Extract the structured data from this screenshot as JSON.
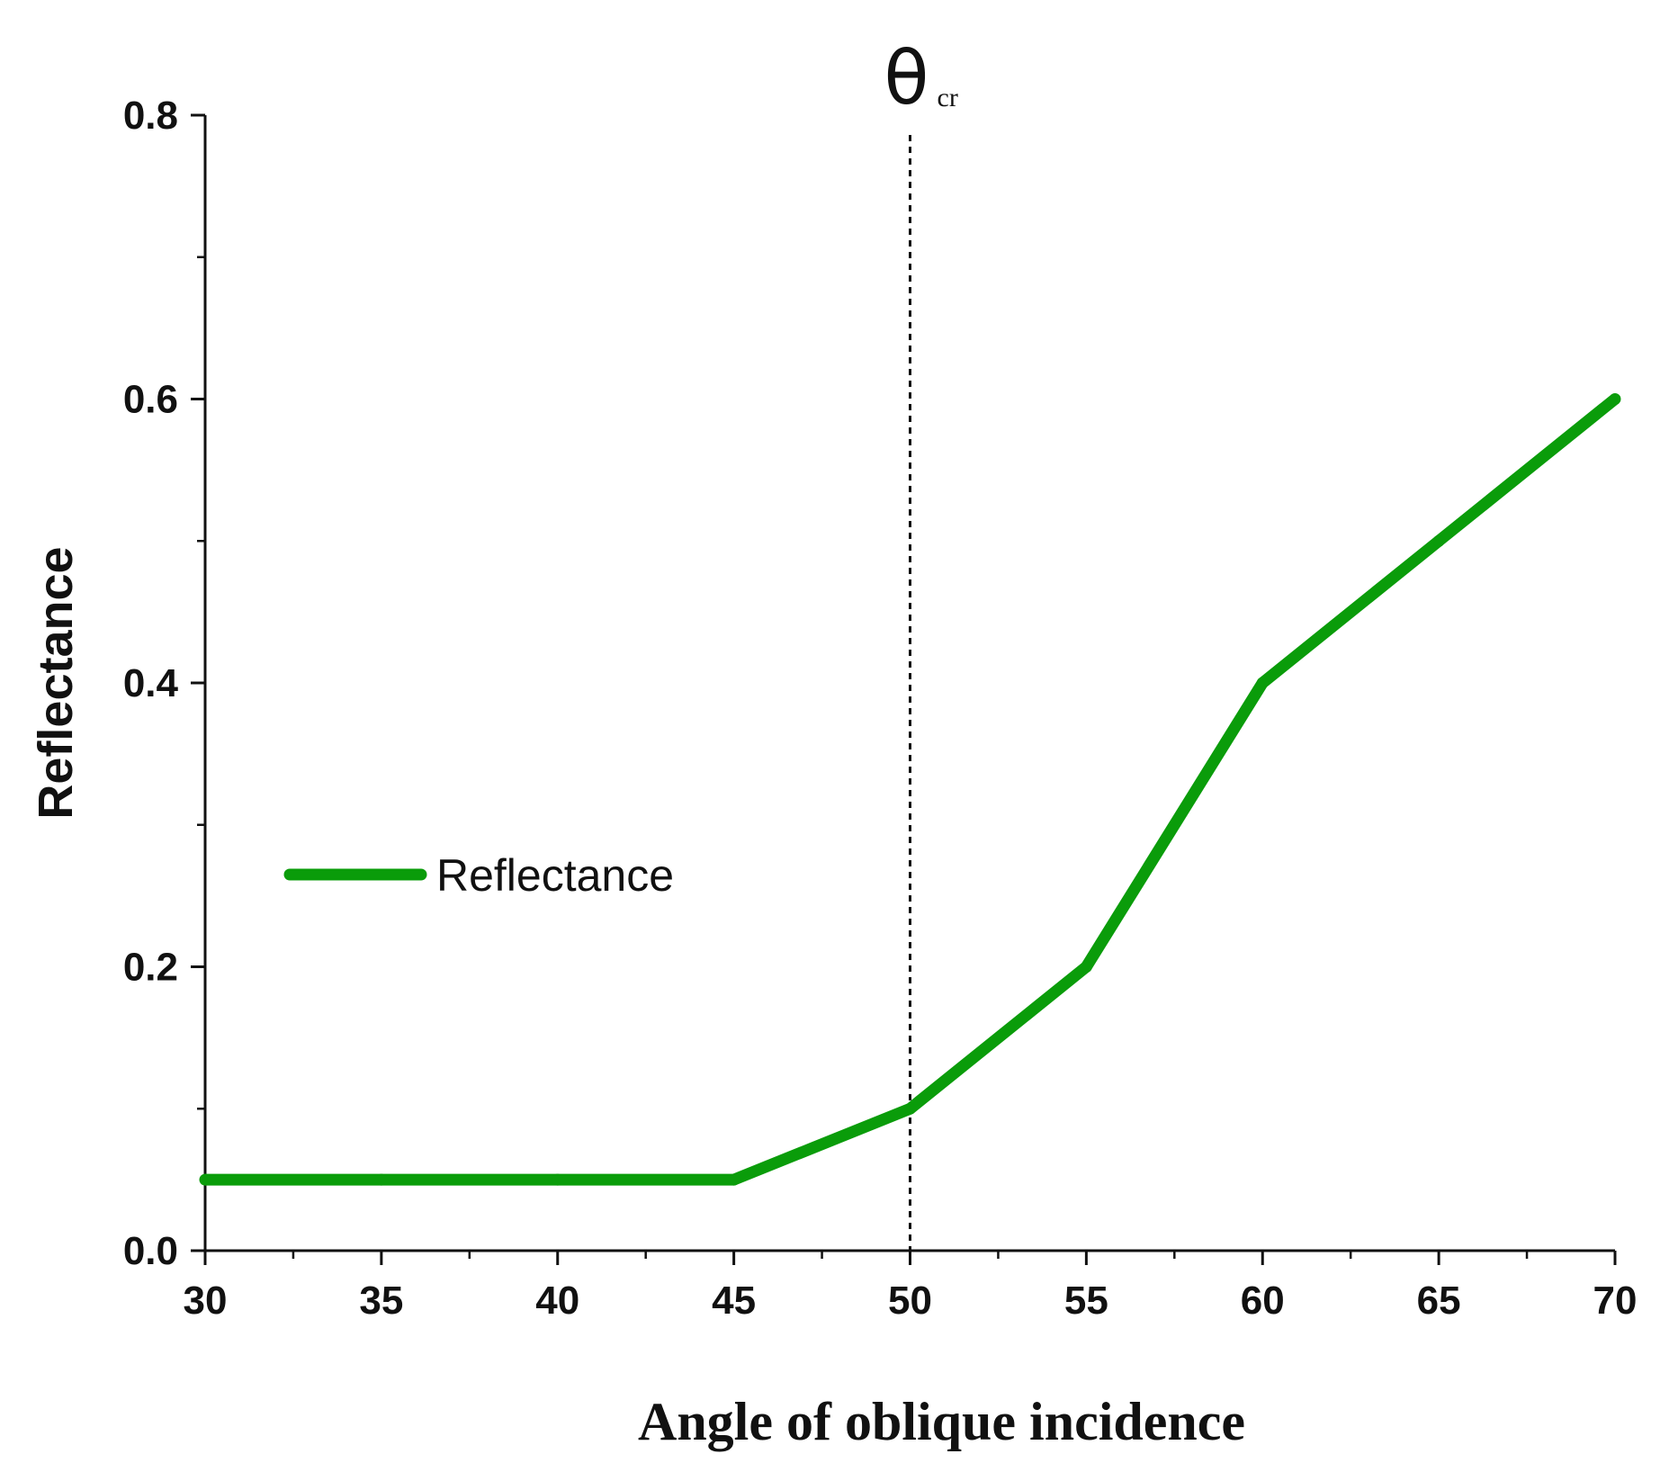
{
  "chart_data": {
    "type": "line",
    "title": "",
    "xlabel": "Angle of oblique incidence",
    "ylabel": "Reflectance",
    "xlim": [
      30,
      70
    ],
    "ylim": [
      0.0,
      0.8
    ],
    "x_ticks": [
      30,
      35,
      40,
      45,
      50,
      55,
      60,
      65,
      70
    ],
    "x_tick_labels": [
      "30",
      "35",
      "40",
      "45",
      "50",
      "55",
      "60",
      "65",
      "70"
    ],
    "y_ticks": [
      0.0,
      0.2,
      0.4,
      0.6,
      0.8
    ],
    "y_tick_labels": [
      "0.0",
      "0.2",
      "0.4",
      "0.6",
      "0.8"
    ],
    "x_minor_step": 2.5,
    "y_minor_step": 0.1,
    "grid": false,
    "legend_placement": "center-left",
    "series": [
      {
        "name": "Reflectance",
        "color": "#0a9c0a",
        "x": [
          30,
          35,
          40,
          45,
          50,
          55,
          60,
          65,
          70
        ],
        "values": [
          0.05,
          0.05,
          0.05,
          0.05,
          0.1,
          0.2,
          0.4,
          0.5,
          0.6
        ]
      }
    ],
    "annotations": [
      {
        "type": "vertical-dashed-line",
        "x": 50,
        "label_symbol": "θ",
        "label_subscript": "cr"
      }
    ]
  },
  "colors": {
    "axis": "#111111",
    "series": "#0a9c0a",
    "background": "#ffffff"
  }
}
